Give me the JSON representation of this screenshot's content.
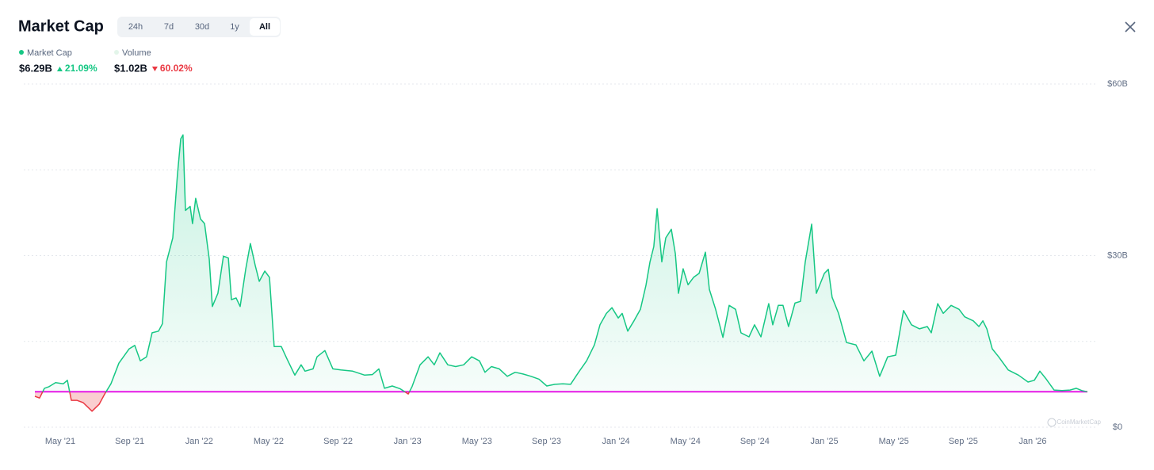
{
  "header": {
    "title": "Market Cap",
    "tabs": [
      "24h",
      "7d",
      "30d",
      "1y",
      "All"
    ],
    "active_tab": 4
  },
  "summary": [
    {
      "name": "Market Cap",
      "color": "#16c784",
      "value": "$6.29B",
      "change": "21.09%",
      "direction": "up"
    },
    {
      "name": "Volume",
      "color": "#e3f5ea",
      "value": "$1.02B",
      "change": "60.02%",
      "direction": "down"
    }
  ],
  "watermark": "CoinMarketCap",
  "chart_data": {
    "type": "line",
    "x": [
      2.54,
      2.81,
      3.09,
      3.36,
      3.73,
      4.18,
      4.41,
      4.64,
      4.96,
      5.32,
      5.83,
      6.24,
      6.56,
      6.92,
      7.38,
      7.97,
      8.29,
      8.61,
      8.97,
      9.29,
      9.66,
      9.89,
      10.12,
      10.48,
      10.75,
      10.94,
      11.07,
      11.21,
      11.48,
      11.62,
      11.8,
      12.08,
      12.31,
      12.58,
      12.76,
      13.08,
      13.4,
      13.68,
      13.86,
      14.13,
      14.36,
      14.68,
      14.95,
      15.23,
      15.46,
      15.78,
      16.05,
      16.32,
      16.73,
      17.05,
      17.51,
      17.87,
      18.1,
      18.56,
      18.79,
      19.24,
      19.7,
      20.16,
      20.84,
      21.53,
      21.98,
      22.35,
      22.67,
      23.12,
      23.58,
      24.04,
      24.26,
      24.72,
      25.18,
      25.54,
      25.86,
      26.32,
      26.77,
      27.23,
      27.69,
      28.14,
      28.46,
      28.83,
      29.28,
      29.74,
      30.2,
      30.65,
      31.11,
      31.57,
      32.02,
      32.48,
      32.94,
      33.39,
      33.85,
      34.31,
      34.76,
      35.08,
      35.45,
      35.77,
      36.13,
      36.36,
      36.68,
      37.04,
      37.41,
      37.73,
      37.96,
      38.18,
      38.37,
      38.64,
      38.87,
      39.19,
      39.42,
      39.6,
      39.87,
      40.15,
      40.47,
      40.79,
      41.15,
      41.38,
      41.74,
      42.16,
      42.52,
      42.89,
      43.2,
      43.66,
      43.98,
      44.35,
      44.8,
      45.03,
      45.35,
      45.62,
      45.94,
      46.31,
      46.63,
      46.9,
      47.27,
      47.54,
      48.0,
      48.23,
      48.45,
      48.82,
      49.28,
      49.82,
      50.28,
      50.74,
      51.19,
      51.65,
      52.11,
      52.56,
      53.02,
      53.48,
      53.93,
      54.16,
      54.53,
      54.85,
      55.3,
      55.76,
      56.08,
      56.58,
      56.9,
      57.13,
      57.36,
      57.67,
      58.04,
      58.59,
      59.18,
      59.73,
      60.09,
      60.41,
      60.78,
      61.23,
      61.69,
      62.15,
      62.51,
      62.83,
      63.15
    ],
    "series": [
      {
        "color": "#16c784",
        "values": [
          5.4,
          5.1,
          6.8,
          7.1,
          7.8,
          7.6,
          8.2,
          4.7,
          4.7,
          4.3,
          2.8,
          4.0,
          5.8,
          7.6,
          11.2,
          13.7,
          14.3,
          11.6,
          12.3,
          16.5,
          16.8,
          18.1,
          28.9,
          33.1,
          44.2,
          50.4,
          51.1,
          37.9,
          38.6,
          35.6,
          40.0,
          36.4,
          35.6,
          29.4,
          21.1,
          23.4,
          29.9,
          29.6,
          22.3,
          22.6,
          21.1,
          27.6,
          32.1,
          28.3,
          25.5,
          27.3,
          26.2,
          14.1,
          14.1,
          12.0,
          9.1,
          10.9,
          9.8,
          10.2,
          12.3,
          13.4,
          10.2,
          10.0,
          9.8,
          9.1,
          9.2,
          10.2,
          6.8,
          7.2,
          6.7,
          5.8,
          7.1,
          10.9,
          12.3,
          10.9,
          13.0,
          10.9,
          10.6,
          10.9,
          12.3,
          11.6,
          9.6,
          10.6,
          10.2,
          8.9,
          9.6,
          9.3,
          8.9,
          8.4,
          7.2,
          7.5,
          7.6,
          7.5,
          9.6,
          11.6,
          14.4,
          17.9,
          19.9,
          20.9,
          19.1,
          19.9,
          16.8,
          18.6,
          20.6,
          24.8,
          28.9,
          31.6,
          38.2,
          28.9,
          33.1,
          34.6,
          30.3,
          23.4,
          27.7,
          24.9,
          26.2,
          26.9,
          30.6,
          24.1,
          20.6,
          15.7,
          21.3,
          20.6,
          16.5,
          15.8,
          17.9,
          15.8,
          21.6,
          17.9,
          21.3,
          21.3,
          17.6,
          21.7,
          22.0,
          28.9,
          35.5,
          23.4,
          26.9,
          27.6,
          22.7,
          19.9,
          14.8,
          14.4,
          11.6,
          13.3,
          8.9,
          12.3,
          12.6,
          20.4,
          17.9,
          17.2,
          17.6,
          16.5,
          21.6,
          19.9,
          21.3,
          20.6,
          19.3,
          18.6,
          17.6,
          18.6,
          17.2,
          13.7,
          12.3,
          10.0,
          9.1,
          7.9,
          8.2,
          9.8,
          8.4,
          6.5,
          6.4,
          6.5,
          6.8,
          6.4,
          6.2
        ]
      }
    ],
    "baseline": 6.2,
    "baseline_color": "#e619e6",
    "below_color": "#ea3943",
    "xlim": [
      2.54,
      63.15
    ],
    "xticks": [
      {
        "value": 4,
        "label": "May '21"
      },
      {
        "value": 8,
        "label": "Sep '21"
      },
      {
        "value": 12,
        "label": "Jan '22"
      },
      {
        "value": 16,
        "label": "May '22"
      },
      {
        "value": 20,
        "label": "Sep '22"
      },
      {
        "value": 24,
        "label": "Jan '23"
      },
      {
        "value": 28,
        "label": "May '23"
      },
      {
        "value": 32,
        "label": "Sep '23"
      },
      {
        "value": 36,
        "label": "Jan '24"
      },
      {
        "value": 40,
        "label": "May '24"
      },
      {
        "value": 44,
        "label": "Sep '24"
      },
      {
        "value": 48,
        "label": "Jan '25"
      },
      {
        "value": 52,
        "label": "May '25"
      },
      {
        "value": 56,
        "label": "Sep '25"
      },
      {
        "value": 60,
        "label": "Jan '26"
      }
    ],
    "ylim": [
      0,
      60
    ],
    "yticks": [
      {
        "value": 0,
        "label": "$0"
      },
      {
        "value": 15,
        "label": null
      },
      {
        "value": 30,
        "label": "$30B"
      },
      {
        "value": 45,
        "label": null
      },
      {
        "value": 60,
        "label": "$60B"
      }
    ],
    "grid": true
  }
}
